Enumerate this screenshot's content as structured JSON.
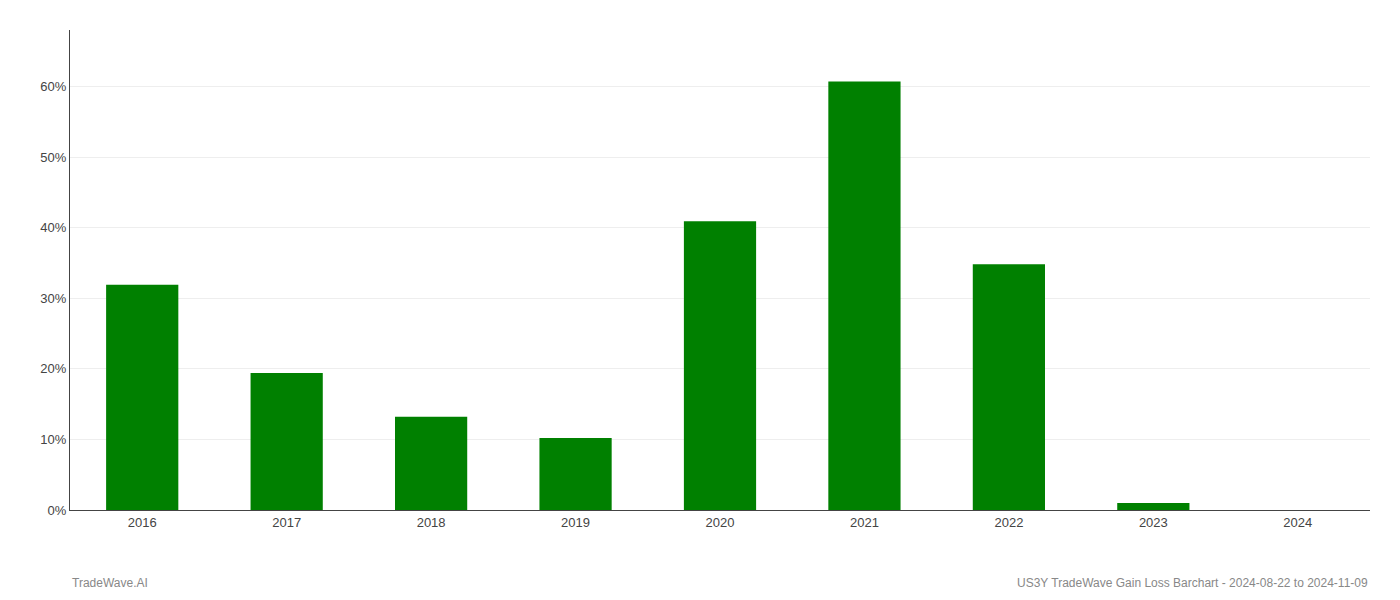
{
  "chart_data": {
    "type": "bar",
    "categories": [
      "2016",
      "2017",
      "2018",
      "2019",
      "2020",
      "2021",
      "2022",
      "2023",
      "2024"
    ],
    "values": [
      0.319,
      0.194,
      0.132,
      0.102,
      0.409,
      0.607,
      0.348,
      0.01,
      0
    ],
    "color": "#008000",
    "ylim": [
      0,
      0.68
    ],
    "yticks": [
      {
        "value": 0,
        "label": "0%"
      },
      {
        "value": 0.1,
        "label": "10%"
      },
      {
        "value": 0.2,
        "label": "20%"
      },
      {
        "value": 0.3,
        "label": "30%"
      },
      {
        "value": 0.4,
        "label": "40%"
      },
      {
        "value": 0.5,
        "label": "50%"
      },
      {
        "value": 0.6,
        "label": "60%"
      }
    ],
    "grid": true,
    "annotations": [
      "TradeWave.AI",
      "US3Y TradeWave Gain Loss Barchart - 2024-08-22 to 2024-11-09"
    ]
  }
}
